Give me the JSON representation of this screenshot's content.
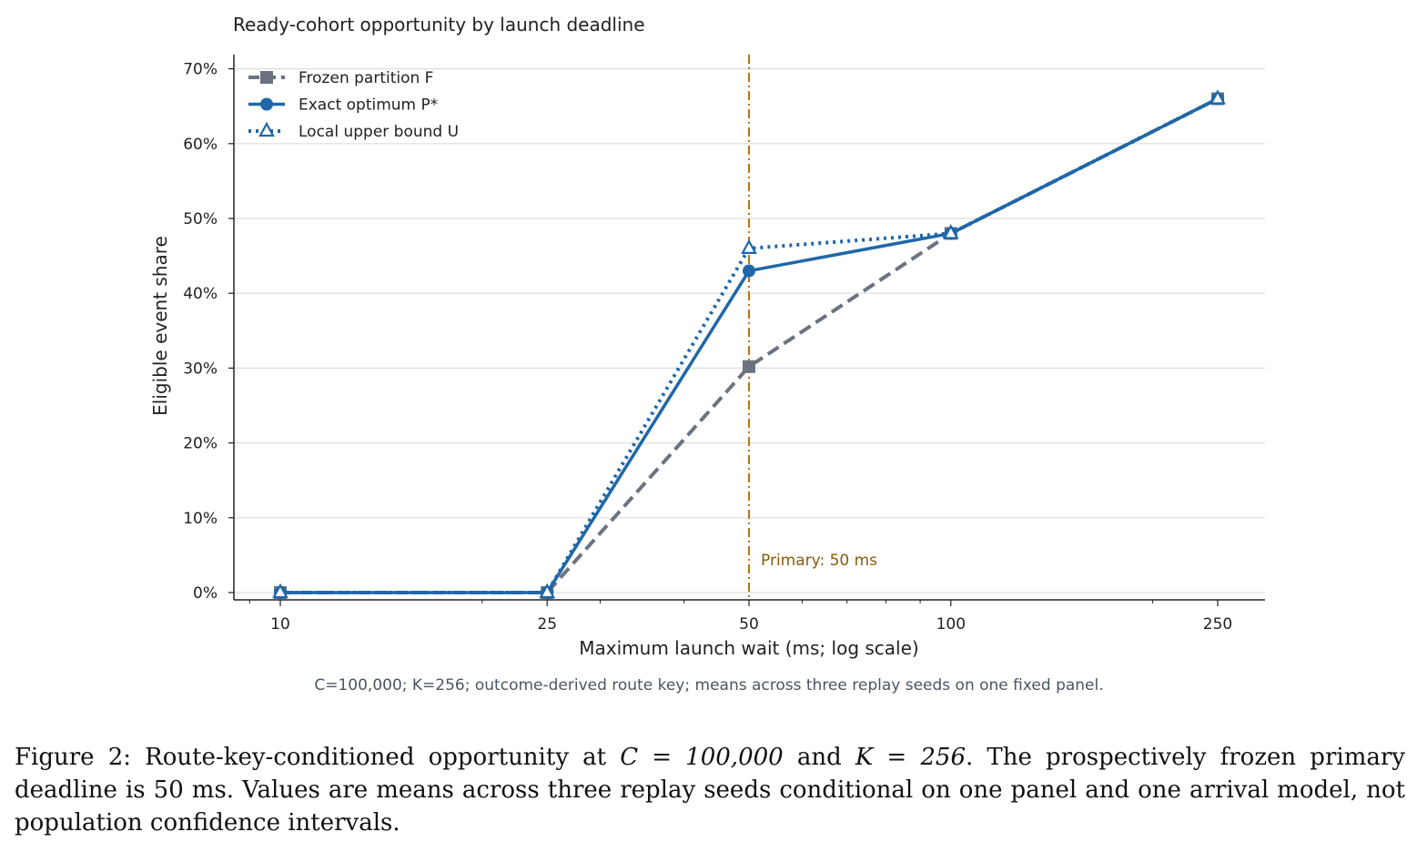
{
  "chart_data": {
    "type": "line",
    "title": "Ready-cohort opportunity by launch deadline",
    "xlabel": "Maximum launch wait (ms; log scale)",
    "ylabel": "Eligible event share",
    "x_scale": "log",
    "x": [
      10,
      25,
      50,
      100,
      250
    ],
    "x_tick_labels": [
      "10",
      "25",
      "50",
      "100",
      "250"
    ],
    "ylim": [
      0,
      70
    ],
    "y_ticks": [
      0,
      10,
      20,
      30,
      40,
      50,
      60,
      70
    ],
    "y_tick_labels": [
      "0%",
      "10%",
      "20%",
      "30%",
      "40%",
      "50%",
      "60%",
      "70%"
    ],
    "grid": "horizontal",
    "legend_position": "top-left",
    "series": [
      {
        "name": "Frozen partition F",
        "values": [
          0,
          0,
          30.2,
          48,
          66
        ],
        "color": "#6b7280",
        "line": "dashed",
        "marker": "square"
      },
      {
        "name": "Exact optimum P*",
        "values": [
          0,
          0,
          43,
          48,
          66
        ],
        "color": "#1f67a8",
        "line": "solid",
        "marker": "circle"
      },
      {
        "name": "Local upper bound U",
        "values": [
          0,
          0,
          46,
          48,
          66
        ],
        "color": "#1f67a8",
        "line": "dotted",
        "marker": "triangle-open"
      }
    ],
    "reference_line": {
      "x": 50,
      "label": "Primary: 50 ms",
      "color": "#b8740f",
      "style": "dashdot"
    },
    "note": "C=100,000; K=256; outcome-derived route key; means across three replay seeds on one fixed panel."
  },
  "caption": {
    "label": "Figure 2:",
    "text_1": " Route-key-conditioned opportunity at ",
    "math_1": "C = 100,000",
    "text_2": " and ",
    "math_2": "K = 256",
    "text_3": ". The prospectively frozen primary deadline is 50 ms. Values are means across three replay seeds conditional on one panel and one arrival model, not population confidence intervals."
  }
}
